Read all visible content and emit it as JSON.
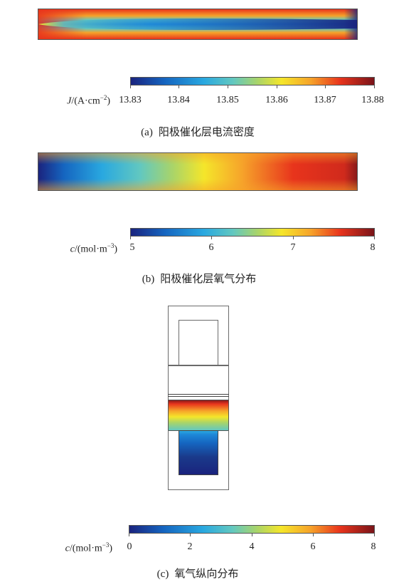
{
  "panel_a": {
    "colorbar": {
      "symbol": "J",
      "unit_pre": "/(A·cm",
      "unit_exp": "−2",
      "unit_post": ")",
      "ticks": [
        "13.83",
        "13.84",
        "13.85",
        "13.86",
        "13.87",
        "13.88"
      ]
    },
    "caption_tag": "(a)",
    "caption_text": "阳极催化层电流密度"
  },
  "panel_b": {
    "colorbar": {
      "symbol": "c",
      "unit_pre": "/(mol·m",
      "unit_exp": "−3",
      "unit_post": ")",
      "ticks": [
        "5",
        "6",
        "7",
        "8"
      ]
    },
    "caption_tag": "(b)",
    "caption_text": "阳极催化层氧气分布"
  },
  "panel_c": {
    "colorbar": {
      "symbol": "c",
      "unit_pre": "/(mol·m",
      "unit_exp": "−3",
      "unit_post": ")",
      "ticks": [
        "0",
        "2",
        "4",
        "6",
        "8"
      ]
    },
    "caption_tag": "(c)",
    "caption_text": "氧气纵向分布"
  },
  "colors": {
    "scale": [
      "#1a237e",
      "#1565c0",
      "#29a8e0",
      "#62c8c0",
      "#a8d46a",
      "#f5e62a",
      "#f6a32a",
      "#e8341c",
      "#7a1419"
    ]
  }
}
